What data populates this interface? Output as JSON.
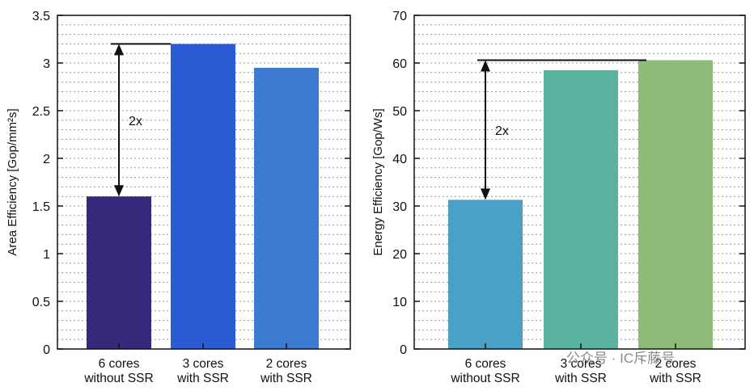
{
  "chart_data": [
    {
      "type": "bar",
      "ylabel": "Area Efficiency [Gop/mm²s]",
      "ylim": [
        0,
        3.5
      ],
      "ticks": [
        "0",
        "0.5",
        "1",
        "1.5",
        "2",
        "2.5",
        "3",
        "3.5"
      ],
      "tick_values": [
        0,
        0.5,
        1,
        1.5,
        2,
        2.5,
        3,
        3.5
      ],
      "grid": "dotted horizontal",
      "categories": [
        [
          "6 cores",
          "without SSR"
        ],
        [
          "3 cores",
          "with SSR"
        ],
        [
          "2 cores",
          "with SSR"
        ]
      ],
      "values": [
        1.6,
        3.2,
        2.95
      ],
      "colors": [
        "#34297a",
        "#2d5bd6",
        "#3d7bd0"
      ],
      "annotation": {
        "text": "2x",
        "from": 1.6,
        "to": 3.2
      }
    },
    {
      "type": "bar",
      "ylabel": "Energy Efficiency [Gop/Ws]",
      "ylim": [
        0,
        70
      ],
      "ticks": [
        "0",
        "10",
        "20",
        "30",
        "40",
        "50",
        "60",
        "70"
      ],
      "tick_values": [
        0,
        10,
        20,
        30,
        40,
        50,
        60,
        70
      ],
      "grid": "dotted horizontal",
      "categories": [
        [
          "6 cores",
          "without SSR"
        ],
        [
          "3 cores",
          "with SSR"
        ],
        [
          "2 cores",
          "with SSR"
        ]
      ],
      "values": [
        31.3,
        58.5,
        60.6
      ],
      "colors": [
        "#4aa0c6",
        "#5ab3a1",
        "#8fbb78"
      ],
      "annotation": {
        "text": "2x",
        "from": 31.3,
        "to": 60.6
      }
    }
  ],
  "watermark": {
    "text": "公众号 · IC斥藤号"
  }
}
